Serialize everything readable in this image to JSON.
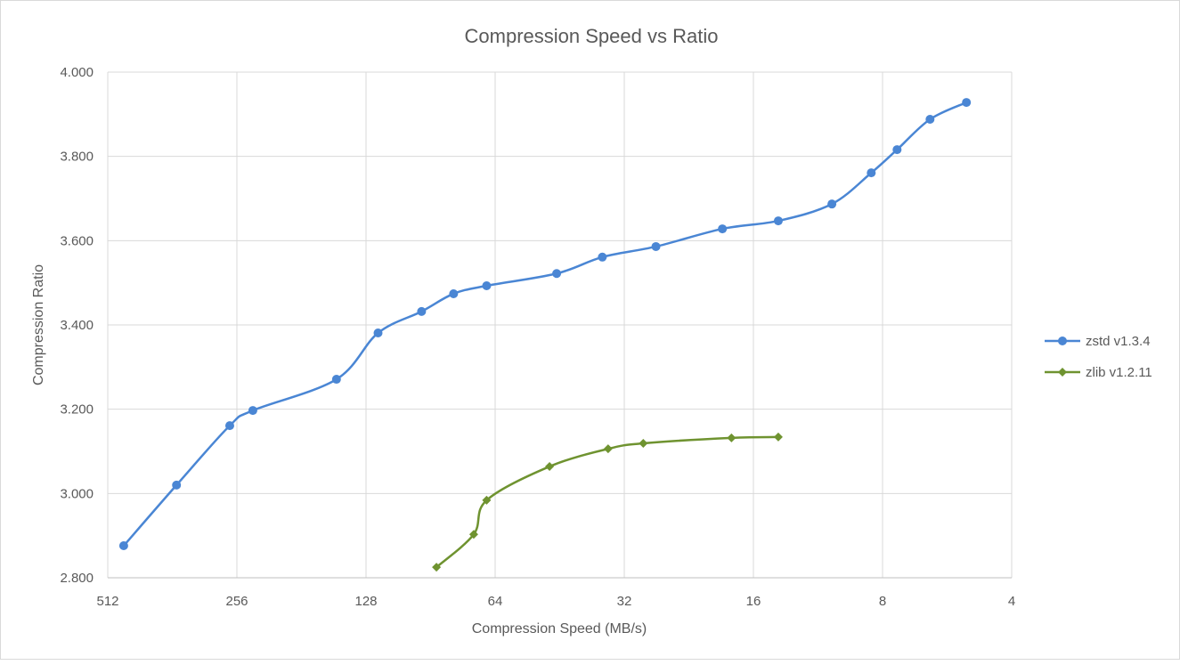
{
  "chart_data": {
    "type": "line",
    "title": "Compression Speed vs Ratio",
    "xlabel": "Compression Speed (MB/s)",
    "ylabel": "Compression Ratio",
    "x_scale": "log2-reversed",
    "xlim": [
      512,
      4
    ],
    "ylim": [
      2.8,
      4.0
    ],
    "x_ticks": [
      "512",
      "256",
      "128",
      "64",
      "32",
      "16",
      "8",
      "4"
    ],
    "x_tick_values": [
      512,
      256,
      128,
      64,
      32,
      16,
      8,
      4
    ],
    "y_ticks": [
      "2.800",
      "3.000",
      "3.200",
      "3.400",
      "3.600",
      "3.800",
      "4.000"
    ],
    "y_tick_values": [
      2.8,
      3.0,
      3.2,
      3.4,
      3.6,
      3.8,
      4.0
    ],
    "grid": true,
    "legend_position": "right",
    "series": [
      {
        "name": "zstd v1.3.4",
        "color": "#4a86d4",
        "marker": "circle",
        "x": [
          470,
          354,
          266,
          235,
          150,
          120,
          95,
          80,
          67,
          46,
          36,
          27,
          18.9,
          14.0,
          10.5,
          8.5,
          7.4,
          6.2,
          5.1
        ],
        "y": [
          2.876,
          3.02,
          3.161,
          3.197,
          3.271,
          3.381,
          3.432,
          3.474,
          3.493,
          3.522,
          3.561,
          3.586,
          3.628,
          3.647,
          3.687,
          3.761,
          3.816,
          3.888,
          3.928
        ]
      },
      {
        "name": "zlib v1.2.11",
        "color": "#6f9330",
        "marker": "diamond",
        "x": [
          87.7,
          71.8,
          67,
          47.8,
          34.9,
          28.9,
          18.0,
          14.0
        ],
        "y": [
          2.825,
          2.903,
          2.984,
          3.064,
          3.106,
          3.119,
          3.132,
          3.134
        ]
      }
    ]
  }
}
